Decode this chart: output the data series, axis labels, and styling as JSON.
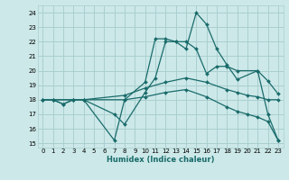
{
  "title": "",
  "xlabel": "Humidex (Indice chaleur)",
  "bg_color": "#cce8e8",
  "line_color": "#1a6b6b",
  "grid_color": "#aacfcf",
  "xlim": [
    -0.5,
    23.5
  ],
  "ylim": [
    14.7,
    24.5
  ],
  "yticks": [
    15,
    16,
    17,
    18,
    19,
    20,
    21,
    22,
    23,
    24
  ],
  "xticks": [
    0,
    1,
    2,
    3,
    4,
    5,
    6,
    7,
    8,
    9,
    10,
    11,
    12,
    13,
    14,
    15,
    16,
    17,
    18,
    19,
    20,
    21,
    22,
    23
  ],
  "lines": [
    {
      "x": [
        0,
        1,
        2,
        3,
        4,
        7,
        8,
        10,
        11,
        12,
        13,
        14,
        15,
        16,
        17,
        18,
        19,
        21,
        22,
        23
      ],
      "y": [
        18,
        18,
        17.7,
        18,
        18,
        15.2,
        18,
        19.2,
        22.2,
        22.2,
        22,
        21.5,
        24,
        23.2,
        21.5,
        20.4,
        19.4,
        20,
        17,
        15.2
      ]
    },
    {
      "x": [
        0,
        1,
        2,
        3,
        4,
        7,
        8,
        10,
        11,
        12,
        13,
        14,
        15,
        16,
        17,
        18,
        19,
        21,
        22,
        23
      ],
      "y": [
        18,
        18,
        17.7,
        18,
        18,
        17.0,
        16.3,
        18.5,
        19.5,
        22,
        22,
        22,
        21.5,
        19.8,
        20.3,
        20.3,
        20,
        20,
        19.3,
        18.4
      ]
    },
    {
      "x": [
        0,
        1,
        3,
        4,
        8,
        10,
        12,
        14,
        16,
        18,
        19,
        20,
        21,
        22,
        23
      ],
      "y": [
        18,
        18,
        18,
        18,
        18.3,
        18.8,
        19.2,
        19.5,
        19.2,
        18.7,
        18.5,
        18.3,
        18.2,
        18.0,
        18.0
      ]
    },
    {
      "x": [
        0,
        1,
        3,
        4,
        8,
        10,
        12,
        14,
        16,
        18,
        19,
        20,
        21,
        22,
        23
      ],
      "y": [
        18,
        18,
        18,
        18,
        18,
        18.2,
        18.5,
        18.7,
        18.2,
        17.5,
        17.2,
        17.0,
        16.8,
        16.5,
        15.2
      ]
    }
  ]
}
